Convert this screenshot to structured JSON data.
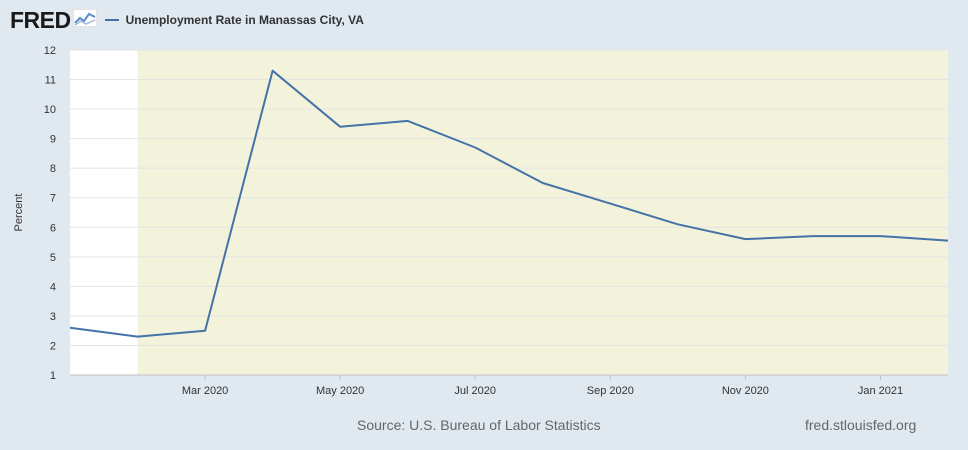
{
  "header": {
    "logo_text": "FRED",
    "logo_icon": "line-graph-icon"
  },
  "chart_data": {
    "type": "line",
    "title": "",
    "ylabel": "Percent",
    "xlabel": "",
    "ylim": [
      1,
      12
    ],
    "yticks": [
      "1",
      "2",
      "3",
      "4",
      "5",
      "6",
      "7",
      "8",
      "9",
      "10",
      "11",
      "12"
    ],
    "xticks": [
      {
        "label": "Mar 2020",
        "date": "2020-03"
      },
      {
        "label": "May 2020",
        "date": "2020-05"
      },
      {
        "label": "Jul 2020",
        "date": "2020-07"
      },
      {
        "label": "Sep 2020",
        "date": "2020-09"
      },
      {
        "label": "Nov 2020",
        "date": "2020-11"
      },
      {
        "label": "Jan 2021",
        "date": "2021-01"
      }
    ],
    "recession_shading": {
      "start": "2020-02",
      "end": "2021-02"
    },
    "series": [
      {
        "name": "Unemployment Rate in Manassas City, VA",
        "color": "#4572a7",
        "x": [
          "2020-01",
          "2020-02",
          "2020-03",
          "2020-04",
          "2020-05",
          "2020-06",
          "2020-07",
          "2020-08",
          "2020-09",
          "2020-10",
          "2020-11",
          "2020-12",
          "2021-01",
          "2021-02"
        ],
        "y": [
          2.6,
          2.3,
          2.5,
          11.3,
          9.4,
          9.6,
          8.7,
          7.5,
          6.8,
          6.1,
          5.6,
          5.7,
          5.7,
          5.55
        ]
      }
    ],
    "grid": true,
    "colors": {
      "plot_bg": "#ffffff",
      "recession": "#f3f3dc",
      "grid": "#e4e4e4"
    }
  },
  "footer": {
    "source": "Source: U.S. Bureau of Labor Statistics",
    "url": "fred.stlouisfed.org"
  }
}
